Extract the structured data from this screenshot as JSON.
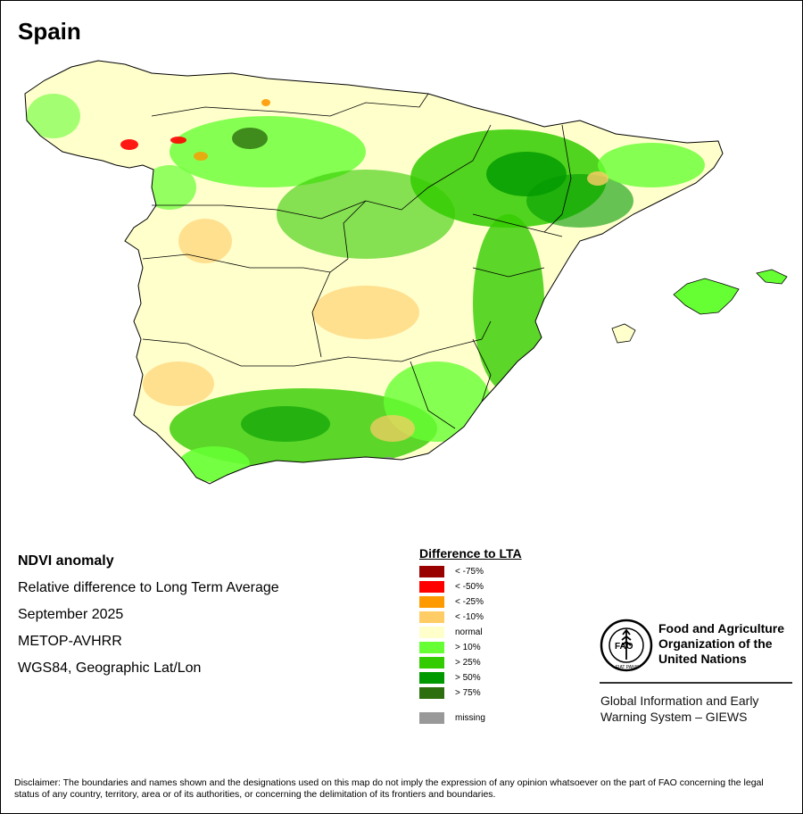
{
  "title": "Spain",
  "info": {
    "line1": "NDVI anomaly",
    "line2": "Relative difference to Long Term Average",
    "line3": "September 2025",
    "line4": "METOP-AVHRR",
    "line5": "WGS84, Geographic Lat/Lon"
  },
  "legend": {
    "title": "Difference to LTA",
    "items": [
      {
        "label": "< -75%",
        "color": "#990000"
      },
      {
        "label": "< -50%",
        "color": "#ff0000"
      },
      {
        "label": "< -25%",
        "color": "#ff9900"
      },
      {
        "label": "< -10%",
        "color": "#ffcc66"
      },
      {
        "label": "normal",
        "color": "#ffffcc"
      },
      {
        "label": "> 10%",
        "color": "#66ff33"
      },
      {
        "label": "> 25%",
        "color": "#33cc00"
      },
      {
        "label": "> 50%",
        "color": "#009900"
      },
      {
        "label": "> 75%",
        "color": "#2d6e0e"
      }
    ],
    "missing": {
      "label": "missing",
      "color": "#999999"
    }
  },
  "org": {
    "name_line1": "Food and Agriculture",
    "name_line2": "Organization of the",
    "name_line3": "United Nations",
    "logo_letters": "FAO",
    "logo_motto": "FIAT PANIS",
    "system_line1": "Global Information and Early",
    "system_line2": "Warning System – GIEWS"
  },
  "disclaimer": "Disclaimer: The boundaries and names shown and the designations used on this map do not imply the expression of any opinion whatsoever on the part of FAO concerning the legal status of any country, territory, area or of its authorities, or concerning the delimitation of its frontiers and boundaries."
}
